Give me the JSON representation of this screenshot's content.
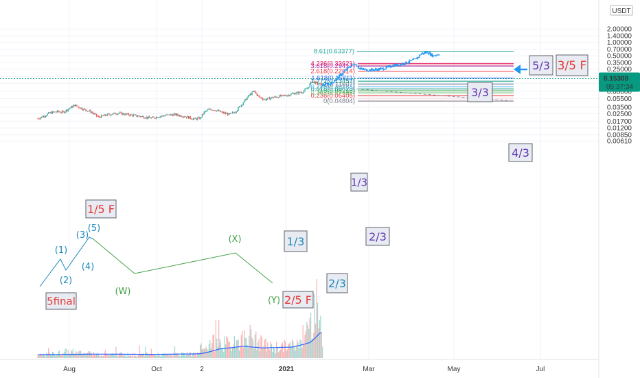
{
  "chart_data": {
    "type": "candlestick",
    "scale": "log",
    "ylim": [
      0.0045,
      2.1
    ],
    "y_ticks": [
      "2.00000",
      "1.40000",
      "1.00000",
      "0.70000",
      "0.50000",
      "0.35000",
      "0.25000",
      "0.17000",
      "0.12000",
      "0.08000",
      "0.05500",
      "0.03500",
      "0.02500",
      "0.01700",
      "0.01200",
      "0.00850",
      "0.00610"
    ],
    "currency": "USDT",
    "x_ticks": [
      "Aug",
      "Oct",
      "2",
      "2021",
      "Mar",
      "May",
      "Jul"
    ],
    "last_price": "0.15300",
    "countdown": "05:37:34",
    "price_path": [
      {
        "d": 0,
        "p": 0.0195
      },
      {
        "d": 6,
        "p": 0.022
      },
      {
        "d": 12,
        "p": 0.026
      },
      {
        "d": 20,
        "p": 0.028
      },
      {
        "d": 26,
        "p": 0.027
      },
      {
        "d": 32,
        "p": 0.033
      },
      {
        "d": 38,
        "p": 0.039
      },
      {
        "d": 46,
        "p": 0.032
      },
      {
        "d": 54,
        "p": 0.028
      },
      {
        "d": 62,
        "p": 0.021
      },
      {
        "d": 72,
        "p": 0.024
      },
      {
        "d": 82,
        "p": 0.026
      },
      {
        "d": 92,
        "p": 0.024
      },
      {
        "d": 104,
        "p": 0.022
      },
      {
        "d": 116,
        "p": 0.02
      },
      {
        "d": 130,
        "p": 0.023
      },
      {
        "d": 140,
        "p": 0.024
      },
      {
        "d": 150,
        "p": 0.022
      },
      {
        "d": 160,
        "p": 0.019
      },
      {
        "d": 166,
        "p": 0.02
      },
      {
        "d": 170,
        "p": 0.027
      },
      {
        "d": 176,
        "p": 0.032
      },
      {
        "d": 182,
        "p": 0.03
      },
      {
        "d": 190,
        "p": 0.026
      },
      {
        "d": 196,
        "p": 0.024
      },
      {
        "d": 202,
        "p": 0.028
      },
      {
        "d": 210,
        "p": 0.045
      },
      {
        "d": 216,
        "p": 0.065
      },
      {
        "d": 221,
        "p": 0.08
      },
      {
        "d": 226,
        "p": 0.06
      },
      {
        "d": 232,
        "p": 0.052
      },
      {
        "d": 240,
        "p": 0.058
      },
      {
        "d": 248,
        "p": 0.062
      },
      {
        "d": 256,
        "p": 0.066
      },
      {
        "d": 262,
        "p": 0.072
      },
      {
        "d": 270,
        "p": 0.076
      },
      {
        "d": 276,
        "p": 0.095
      },
      {
        "d": 280,
        "p": 0.135
      },
      {
        "d": 286,
        "p": 0.118
      },
      {
        "d": 291,
        "p": 0.112
      },
      {
        "d": 300,
        "p": 0.12
      },
      {
        "d": 306,
        "p": 0.16
      },
      {
        "d": 312,
        "p": 0.21
      },
      {
        "d": 318,
        "p": 0.28
      },
      {
        "d": 324,
        "p": 0.33
      },
      {
        "d": 330,
        "p": 0.25
      },
      {
        "d": 338,
        "p": 0.24
      },
      {
        "d": 346,
        "p": 0.245
      },
      {
        "d": 354,
        "p": 0.26
      },
      {
        "d": 362,
        "p": 0.3
      },
      {
        "d": 370,
        "p": 0.32
      },
      {
        "d": 378,
        "p": 0.36
      },
      {
        "d": 386,
        "p": 0.42
      },
      {
        "d": 392,
        "p": 0.56
      },
      {
        "d": 398,
        "p": 0.6
      },
      {
        "d": 404,
        "p": 0.5
      },
      {
        "d": 410,
        "p": 0.55
      }
    ],
    "volume_profile": [
      {
        "d": 0,
        "v": 1.0
      },
      {
        "d": 30,
        "v": 2.5
      },
      {
        "d": 60,
        "v": 1.4
      },
      {
        "d": 100,
        "v": 1.2
      },
      {
        "d": 140,
        "v": 1.3
      },
      {
        "d": 165,
        "v": 1.5
      },
      {
        "d": 175,
        "v": 6
      },
      {
        "d": 200,
        "v": 5
      },
      {
        "d": 215,
        "v": 9
      },
      {
        "d": 225,
        "v": 6
      },
      {
        "d": 240,
        "v": 4
      },
      {
        "d": 265,
        "v": 5
      },
      {
        "d": 280,
        "v": 14
      },
      {
        "d": 285,
        "v": 26
      },
      {
        "d": 290,
        "v": 10
      }
    ],
    "volume_ma": [
      {
        "d": 0,
        "v": 1.2
      },
      {
        "d": 60,
        "v": 1.4
      },
      {
        "d": 120,
        "v": 1.3
      },
      {
        "d": 165,
        "v": 1.5
      },
      {
        "d": 185,
        "v": 3.2
      },
      {
        "d": 210,
        "v": 4.2
      },
      {
        "d": 230,
        "v": 3.6
      },
      {
        "d": 260,
        "v": 3.9
      },
      {
        "d": 278,
        "v": 5.5
      },
      {
        "d": 288,
        "v": 8.8
      },
      {
        "d": 291,
        "v": 9.2
      }
    ],
    "fib_levels": [
      {
        "label": "0(0.04804)",
        "value": 0.04804,
        "color": "#787b86"
      },
      {
        "label": "0.236(0.06405)",
        "value": 0.06405,
        "color": "#f23645"
      },
      {
        "label": "0.382(0.07405)",
        "value": 0.07405,
        "color": "#81c784"
      },
      {
        "label": "0.5(0.08216)",
        "value": 0.08216,
        "color": "#4caf50"
      },
      {
        "label": "0.618(0.09028)",
        "value": 0.09028,
        "color": "#089981"
      },
      {
        "label": "0.786(0.10183)",
        "value": 0.10183,
        "color": "#64b5f6"
      },
      {
        "label": "1(0.11607)",
        "value": 0.11607,
        "color": "#787b86"
      },
      {
        "label": "1.272(0.13457)",
        "value": 0.13457,
        "color": "#089981"
      },
      {
        "label": "1.618(0.15811)",
        "value": 0.15811,
        "color": "#2962ff"
      },
      {
        "label": "2.618(0.22614)",
        "value": 0.22614,
        "color": "#f23645"
      },
      {
        "label": "3.618(0.29417)",
        "value": 0.29417,
        "color": "#9c27b0"
      },
      {
        "label": "4.236(0.33621)",
        "value": 0.33621,
        "color": "#e91e63"
      },
      {
        "label": "8.61(0.63377)",
        "value": 0.63377,
        "color": "#26a69a"
      }
    ],
    "wave_labels": [
      {
        "text": "(1)",
        "color": "#1e88b8"
      },
      {
        "text": "(2)",
        "color": "#1e88b8"
      },
      {
        "text": "(3)",
        "color": "#1e88b8"
      },
      {
        "text": "(4)",
        "color": "#1e88b8"
      },
      {
        "text": "(5)",
        "color": "#1e88b8"
      },
      {
        "text": "(W)",
        "color": "#43a047"
      },
      {
        "text": "(X)",
        "color": "#43a047"
      },
      {
        "text": "(Y)",
        "color": "#43a047"
      }
    ],
    "boxed_labels": [
      {
        "text": "5final",
        "color": "#e53935"
      },
      {
        "text": "1/5 F",
        "color": "#e53935"
      },
      {
        "text": "1/3",
        "color": "#1e88b8"
      },
      {
        "text": "2/5 F",
        "color": "#e53935"
      },
      {
        "text": "2/3",
        "color": "#1e88b8"
      },
      {
        "text": "2/3",
        "color": "#5e35b1"
      },
      {
        "text": "1/3",
        "color": "#5e35b1"
      },
      {
        "text": "3/3",
        "color": "#5e35b1"
      },
      {
        "text": "4/3",
        "color": "#5e35b1"
      },
      {
        "text": "5/3",
        "color": "#5e35b1"
      },
      {
        "text": "3/5 F",
        "color": "#e53935"
      }
    ],
    "colors": {
      "up": "#26a69a",
      "down": "#ef5350",
      "projection": "#2196f3",
      "volume_ma": "#2962ff",
      "price_badge": "#089981"
    }
  }
}
